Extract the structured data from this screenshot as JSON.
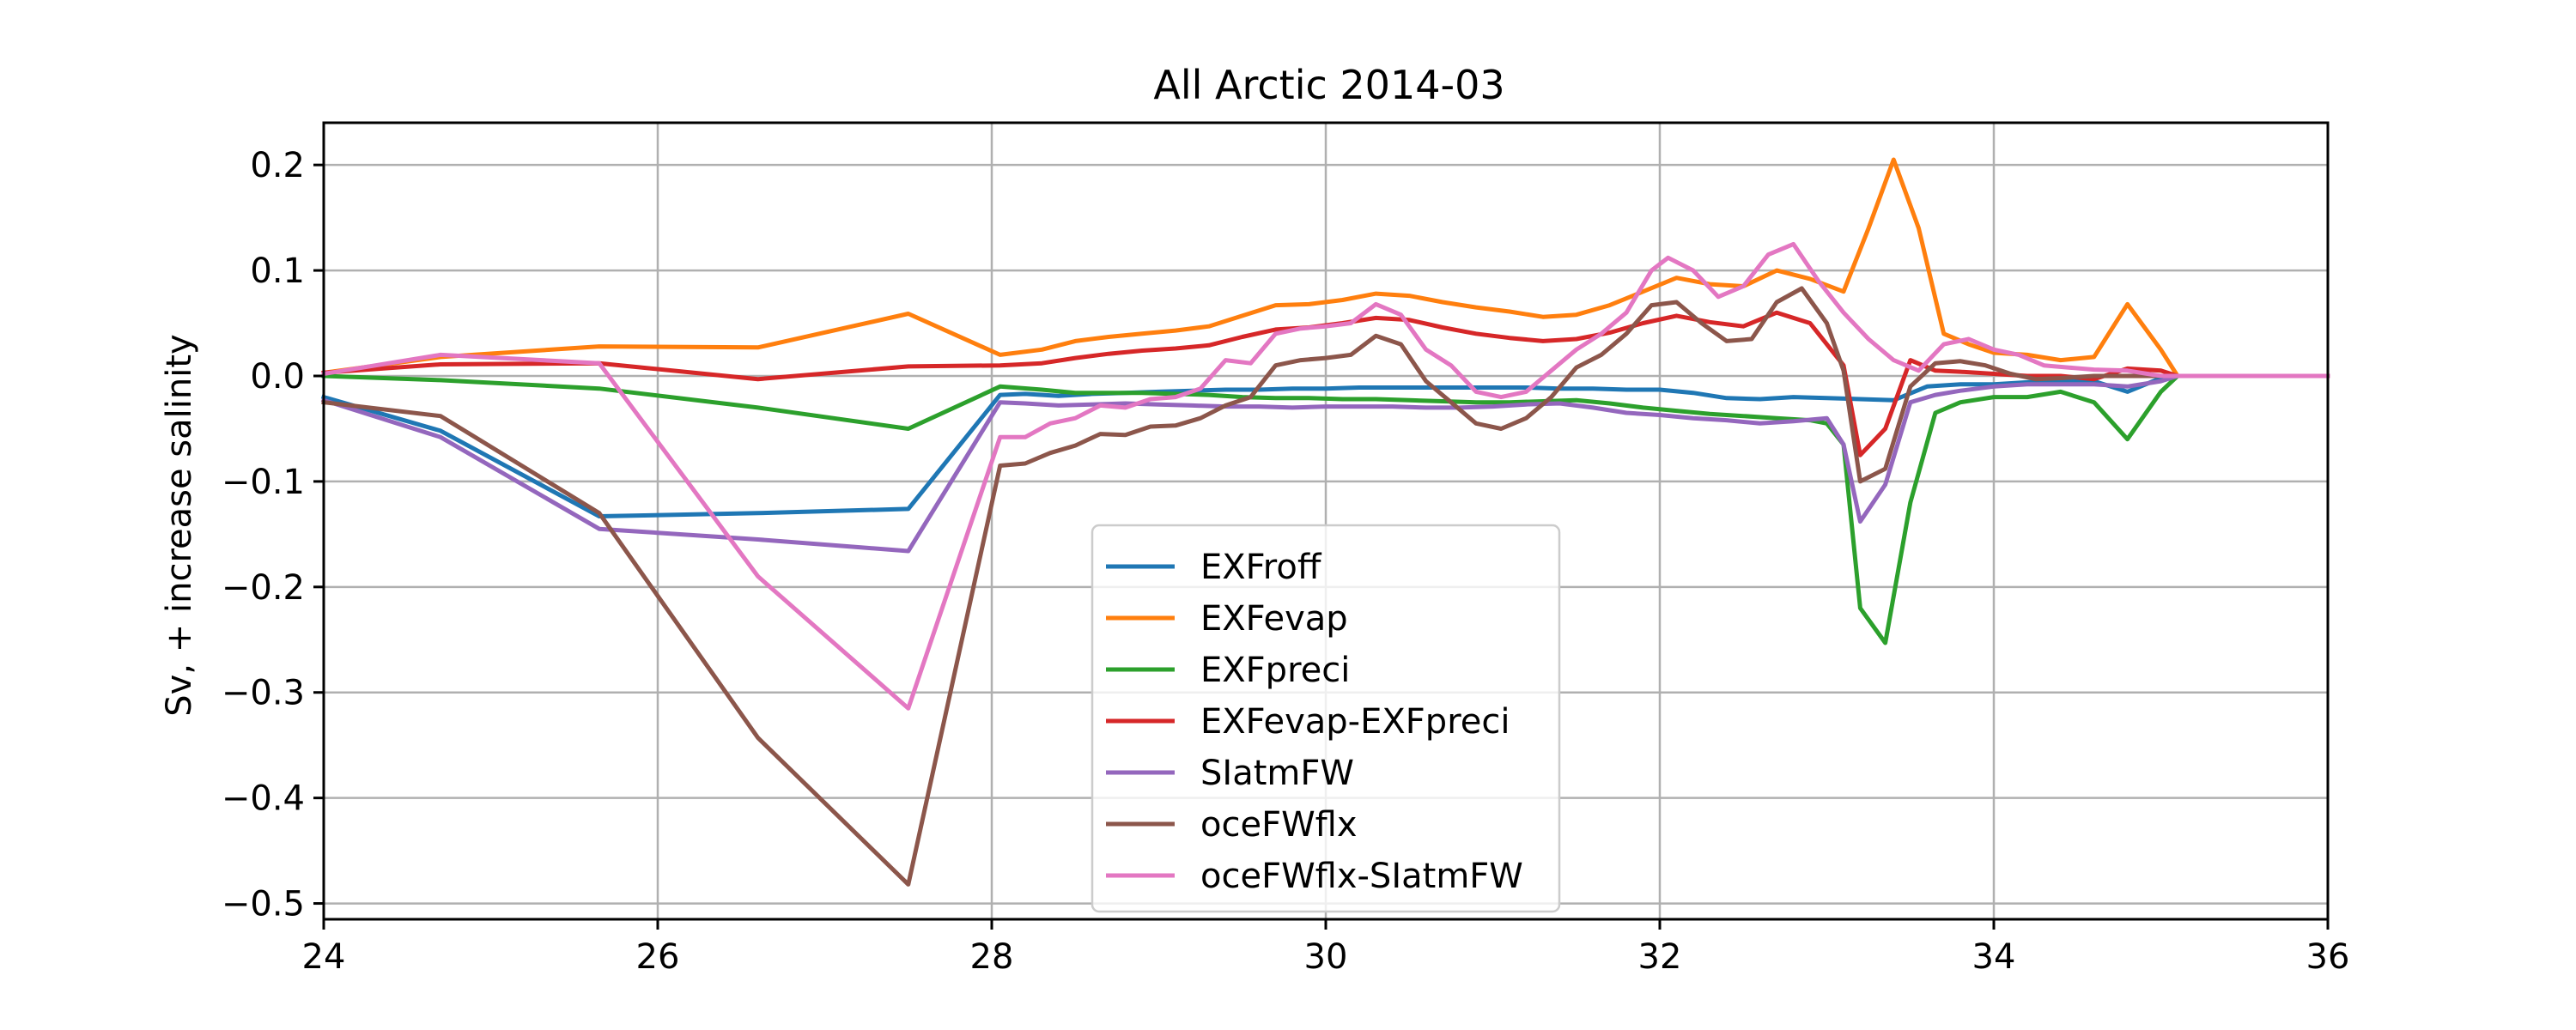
{
  "chart_data": {
    "type": "line",
    "title": "All Arctic 2014-03",
    "xlabel": "",
    "ylabel": "Sv, + increase salinity",
    "xlim": [
      24,
      36
    ],
    "ylim": [
      -0.515,
      0.24
    ],
    "xticks": [
      24,
      26,
      28,
      30,
      32,
      34,
      36
    ],
    "xtick_labels": [
      "24",
      "26",
      "28",
      "30",
      "32",
      "34",
      "36"
    ],
    "yticks": [
      -0.5,
      -0.4,
      -0.3,
      -0.2,
      -0.1,
      0.0,
      0.1,
      0.2
    ],
    "ytick_labels": [
      "−0.5",
      "−0.4",
      "−0.3",
      "−0.2",
      "−0.1",
      "0.0",
      "0.1",
      "0.2"
    ],
    "grid": true,
    "legend_position": "lower center",
    "series": [
      {
        "name": "EXFroff",
        "color": "#1f77b4",
        "x": [
          24.0,
          24.7,
          25.65,
          26.6,
          27.5,
          28.05,
          28.2,
          28.4,
          28.6,
          28.8,
          29.0,
          29.2,
          29.4,
          29.6,
          29.8,
          30.0,
          30.2,
          30.4,
          30.6,
          30.8,
          31.0,
          31.2,
          31.4,
          31.6,
          31.8,
          32.0,
          32.2,
          32.4,
          32.6,
          32.8,
          33.0,
          33.2,
          33.4,
          33.6,
          33.8,
          34.0,
          34.2,
          34.4,
          34.6,
          34.8,
          35.0,
          35.1,
          35.5,
          36.0
        ],
        "y": [
          -0.02,
          -0.052,
          -0.133,
          -0.13,
          -0.126,
          -0.018,
          -0.017,
          -0.019,
          -0.017,
          -0.016,
          -0.015,
          -0.014,
          -0.013,
          -0.013,
          -0.012,
          -0.012,
          -0.011,
          -0.011,
          -0.011,
          -0.011,
          -0.011,
          -0.011,
          -0.012,
          -0.012,
          -0.013,
          -0.013,
          -0.016,
          -0.021,
          -0.022,
          -0.02,
          -0.021,
          -0.022,
          -0.023,
          -0.01,
          -0.008,
          -0.008,
          -0.006,
          -0.005,
          -0.005,
          -0.015,
          -0.002,
          0.0,
          0.0,
          0.0
        ]
      },
      {
        "name": "EXFevap",
        "color": "#ff7f0e",
        "x": [
          24.0,
          24.7,
          25.65,
          26.6,
          27.5,
          28.05,
          28.3,
          28.5,
          28.7,
          28.9,
          29.1,
          29.3,
          29.5,
          29.7,
          29.9,
          30.1,
          30.3,
          30.5,
          30.7,
          30.9,
          31.1,
          31.3,
          31.5,
          31.7,
          31.9,
          32.1,
          32.3,
          32.5,
          32.7,
          32.9,
          33.1,
          33.25,
          33.4,
          33.55,
          33.7,
          33.85,
          34.0,
          34.2,
          34.4,
          34.6,
          34.8,
          35.0,
          35.1,
          35.5,
          36.0
        ],
        "y": [
          0.003,
          0.018,
          0.028,
          0.027,
          0.059,
          0.02,
          0.025,
          0.033,
          0.037,
          0.04,
          0.043,
          0.047,
          0.057,
          0.067,
          0.068,
          0.072,
          0.078,
          0.076,
          0.07,
          0.065,
          0.061,
          0.056,
          0.058,
          0.067,
          0.08,
          0.093,
          0.087,
          0.085,
          0.1,
          0.092,
          0.08,
          0.14,
          0.205,
          0.14,
          0.04,
          0.03,
          0.022,
          0.02,
          0.015,
          0.018,
          0.068,
          0.025,
          0.0,
          0.0,
          0.0
        ]
      },
      {
        "name": "EXFpreci",
        "color": "#2ca02c",
        "x": [
          24.0,
          24.7,
          25.65,
          26.6,
          27.5,
          28.05,
          28.3,
          28.5,
          28.7,
          28.9,
          29.1,
          29.3,
          29.5,
          29.7,
          29.9,
          30.1,
          30.3,
          30.5,
          30.7,
          30.9,
          31.1,
          31.3,
          31.5,
          31.7,
          31.9,
          32.1,
          32.3,
          32.5,
          32.7,
          32.9,
          33.0,
          33.1,
          33.2,
          33.35,
          33.5,
          33.65,
          33.8,
          34.0,
          34.2,
          34.4,
          34.6,
          34.8,
          35.0,
          35.1,
          35.5,
          36.0
        ],
        "y": [
          0.0,
          -0.004,
          -0.012,
          -0.03,
          -0.05,
          -0.01,
          -0.013,
          -0.016,
          -0.016,
          -0.016,
          -0.017,
          -0.018,
          -0.02,
          -0.021,
          -0.021,
          -0.022,
          -0.022,
          -0.023,
          -0.024,
          -0.025,
          -0.025,
          -0.024,
          -0.023,
          -0.026,
          -0.03,
          -0.033,
          -0.036,
          -0.038,
          -0.04,
          -0.042,
          -0.045,
          -0.065,
          -0.22,
          -0.253,
          -0.12,
          -0.035,
          -0.025,
          -0.02,
          -0.02,
          -0.015,
          -0.025,
          -0.06,
          -0.015,
          0.0,
          0.0,
          0.0
        ]
      },
      {
        "name": "EXFevap-EXFpreci",
        "color": "#d62728",
        "x": [
          24.0,
          24.7,
          25.65,
          26.6,
          27.5,
          28.05,
          28.3,
          28.5,
          28.7,
          28.9,
          29.1,
          29.3,
          29.5,
          29.7,
          29.9,
          30.1,
          30.3,
          30.5,
          30.7,
          30.9,
          31.1,
          31.3,
          31.5,
          31.7,
          31.9,
          32.1,
          32.3,
          32.5,
          32.7,
          32.9,
          33.1,
          33.2,
          33.35,
          33.5,
          33.65,
          33.8,
          34.0,
          34.2,
          34.4,
          34.6,
          34.8,
          35.0,
          35.1,
          35.5,
          36.0
        ],
        "y": [
          0.003,
          0.011,
          0.012,
          -0.003,
          0.009,
          0.01,
          0.012,
          0.017,
          0.021,
          0.024,
          0.026,
          0.029,
          0.037,
          0.044,
          0.046,
          0.05,
          0.055,
          0.053,
          0.046,
          0.04,
          0.036,
          0.033,
          0.035,
          0.041,
          0.05,
          0.057,
          0.051,
          0.047,
          0.06,
          0.05,
          0.01,
          -0.075,
          -0.05,
          0.015,
          0.005,
          0.004,
          0.002,
          0.0,
          0.0,
          -0.003,
          0.007,
          0.005,
          0.0,
          0.0,
          0.0
        ]
      },
      {
        "name": "SIatmFW",
        "color": "#9467bd",
        "x": [
          24.0,
          24.7,
          25.65,
          26.6,
          27.5,
          28.05,
          28.2,
          28.4,
          28.6,
          28.8,
          29.0,
          29.2,
          29.4,
          29.6,
          29.8,
          30.0,
          30.2,
          30.4,
          30.6,
          30.8,
          31.0,
          31.2,
          31.4,
          31.6,
          31.8,
          32.0,
          32.2,
          32.4,
          32.6,
          32.8,
          33.0,
          33.1,
          33.2,
          33.35,
          33.5,
          33.65,
          33.8,
          34.0,
          34.2,
          34.4,
          34.6,
          34.8,
          35.0,
          35.1,
          35.5,
          36.0
        ],
        "y": [
          -0.023,
          -0.058,
          -0.145,
          -0.155,
          -0.166,
          -0.025,
          -0.026,
          -0.028,
          -0.027,
          -0.026,
          -0.027,
          -0.028,
          -0.029,
          -0.029,
          -0.03,
          -0.029,
          -0.029,
          -0.029,
          -0.03,
          -0.03,
          -0.029,
          -0.027,
          -0.026,
          -0.03,
          -0.035,
          -0.037,
          -0.04,
          -0.042,
          -0.045,
          -0.043,
          -0.04,
          -0.065,
          -0.138,
          -0.103,
          -0.025,
          -0.018,
          -0.014,
          -0.01,
          -0.008,
          -0.008,
          -0.008,
          -0.01,
          -0.005,
          0.0,
          0.0,
          0.0
        ]
      },
      {
        "name": "oceFWflx",
        "color": "#8c564b",
        "x": [
          24.0,
          24.7,
          25.65,
          26.6,
          27.5,
          28.05,
          28.2,
          28.35,
          28.5,
          28.65,
          28.8,
          28.95,
          29.1,
          29.25,
          29.4,
          29.55,
          29.7,
          29.85,
          30.0,
          30.15,
          30.3,
          30.45,
          30.6,
          30.75,
          30.9,
          31.05,
          31.2,
          31.35,
          31.5,
          31.65,
          31.8,
          31.95,
          32.1,
          32.25,
          32.4,
          32.55,
          32.7,
          32.85,
          33.0,
          33.1,
          33.2,
          33.35,
          33.5,
          33.65,
          33.8,
          33.95,
          34.1,
          34.25,
          34.4,
          34.6,
          34.8,
          35.0,
          35.1,
          35.5,
          36.0
        ],
        "y": [
          -0.025,
          -0.038,
          -0.13,
          -0.343,
          -0.482,
          -0.085,
          -0.083,
          -0.073,
          -0.066,
          -0.055,
          -0.056,
          -0.048,
          -0.047,
          -0.04,
          -0.028,
          -0.02,
          0.01,
          0.015,
          0.017,
          0.02,
          0.038,
          0.03,
          -0.005,
          -0.025,
          -0.045,
          -0.05,
          -0.04,
          -0.02,
          0.008,
          0.02,
          0.04,
          0.067,
          0.07,
          0.05,
          0.033,
          0.035,
          0.07,
          0.083,
          0.05,
          0.005,
          -0.1,
          -0.088,
          -0.01,
          0.012,
          0.014,
          0.01,
          0.002,
          -0.003,
          -0.002,
          0.0,
          0.0,
          0.0,
          0.0,
          0.0,
          0.0
        ]
      },
      {
        "name": "oceFWflx-SIatmFW",
        "color": "#e377c2",
        "x": [
          24.0,
          24.7,
          25.65,
          26.6,
          27.5,
          28.05,
          28.2,
          28.35,
          28.5,
          28.65,
          28.8,
          28.95,
          29.1,
          29.25,
          29.4,
          29.55,
          29.7,
          29.85,
          30.0,
          30.15,
          30.3,
          30.45,
          30.6,
          30.75,
          30.9,
          31.05,
          31.2,
          31.35,
          31.5,
          31.65,
          31.8,
          31.95,
          32.05,
          32.2,
          32.35,
          32.5,
          32.65,
          32.8,
          32.95,
          33.1,
          33.25,
          33.4,
          33.55,
          33.7,
          33.85,
          34.0,
          34.15,
          34.3,
          34.45,
          34.6,
          34.8,
          35.0,
          35.1,
          35.5,
          36.0
        ],
        "y": [
          0.002,
          0.02,
          0.012,
          -0.19,
          -0.315,
          -0.058,
          -0.058,
          -0.045,
          -0.04,
          -0.028,
          -0.03,
          -0.022,
          -0.02,
          -0.012,
          0.015,
          0.012,
          0.04,
          0.045,
          0.047,
          0.05,
          0.068,
          0.058,
          0.025,
          0.01,
          -0.015,
          -0.02,
          -0.015,
          0.005,
          0.025,
          0.04,
          0.06,
          0.1,
          0.112,
          0.1,
          0.075,
          0.085,
          0.115,
          0.125,
          0.09,
          0.06,
          0.035,
          0.015,
          0.005,
          0.03,
          0.035,
          0.025,
          0.02,
          0.01,
          0.008,
          0.006,
          0.005,
          0.0,
          0.0,
          0.0,
          0.0
        ]
      }
    ]
  }
}
